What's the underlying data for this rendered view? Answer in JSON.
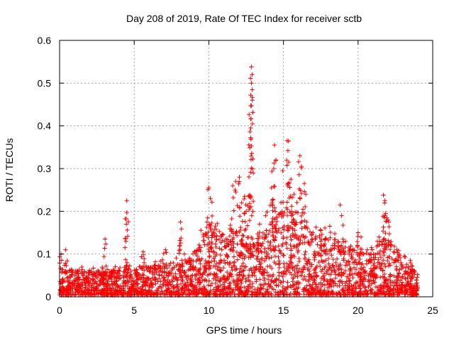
{
  "chart_data": {
    "type": "scatter",
    "title": "Day 208 of 2019, Rate Of TEC Index for receiver sctb",
    "xlabel": "GPS time / hours",
    "ylabel": "ROTI / TECUs",
    "xlim": [
      0,
      25
    ],
    "ylim": [
      0,
      0.6
    ],
    "xticks": [
      0,
      5,
      10,
      15,
      20,
      25
    ],
    "yticks": [
      0,
      0.1,
      0.2,
      0.3,
      0.4,
      0.5,
      0.6
    ],
    "xtick_labels": [
      "0",
      "5",
      "10",
      "15",
      "20",
      "25"
    ],
    "ytick_labels": [
      "0",
      "0.1",
      "0.2",
      "0.3",
      "0.4",
      "0.5",
      "0.6"
    ],
    "grid": true,
    "marker": "+",
    "color": "#ff0000",
    "series": [
      {
        "name": "ROTI",
        "x_range": [
          0,
          24
        ],
        "baseline_profile": {
          "hours": [
            0,
            2,
            4,
            6,
            8,
            9,
            10,
            11,
            12,
            13,
            14,
            15,
            16,
            17,
            18,
            19,
            20,
            21,
            22,
            23,
            24
          ],
          "typical_max": [
            0.06,
            0.06,
            0.06,
            0.07,
            0.08,
            0.09,
            0.18,
            0.14,
            0.16,
            0.12,
            0.18,
            0.2,
            0.2,
            0.14,
            0.14,
            0.12,
            0.1,
            0.11,
            0.14,
            0.08,
            0.05
          ]
        },
        "peaks": [
          {
            "x": 0.1,
            "y": 0.1
          },
          {
            "x": 0.4,
            "y": 0.11
          },
          {
            "x": 3.05,
            "y": 0.135
          },
          {
            "x": 4.5,
            "y": 0.225
          },
          {
            "x": 4.5,
            "y": 0.197
          },
          {
            "x": 4.45,
            "y": 0.13
          },
          {
            "x": 5.6,
            "y": 0.105
          },
          {
            "x": 7.1,
            "y": 0.11
          },
          {
            "x": 8.05,
            "y": 0.12
          },
          {
            "x": 8.1,
            "y": 0.175
          },
          {
            "x": 10.0,
            "y": 0.255
          },
          {
            "x": 10.1,
            "y": 0.23
          },
          {
            "x": 10.3,
            "y": 0.15
          },
          {
            "x": 11.6,
            "y": 0.26
          },
          {
            "x": 11.8,
            "y": 0.27
          },
          {
            "x": 12.05,
            "y": 0.28
          },
          {
            "x": 12.2,
            "y": 0.22
          },
          {
            "x": 12.4,
            "y": 0.235
          },
          {
            "x": 12.5,
            "y": 0.2
          },
          {
            "x": 12.85,
            "y": 0.538
          },
          {
            "x": 12.9,
            "y": 0.52
          },
          {
            "x": 12.85,
            "y": 0.5
          },
          {
            "x": 12.8,
            "y": 0.472
          },
          {
            "x": 12.85,
            "y": 0.447
          },
          {
            "x": 12.8,
            "y": 0.372
          },
          {
            "x": 12.85,
            "y": 0.353
          },
          {
            "x": 12.75,
            "y": 0.235
          },
          {
            "x": 12.95,
            "y": 0.2
          },
          {
            "x": 13.4,
            "y": 0.17
          },
          {
            "x": 13.8,
            "y": 0.19
          },
          {
            "x": 14.2,
            "y": 0.255
          },
          {
            "x": 14.3,
            "y": 0.228
          },
          {
            "x": 14.4,
            "y": 0.355
          },
          {
            "x": 14.5,
            "y": 0.32
          },
          {
            "x": 14.35,
            "y": 0.3
          },
          {
            "x": 14.95,
            "y": 0.295
          },
          {
            "x": 15.25,
            "y": 0.365
          },
          {
            "x": 15.3,
            "y": 0.342
          },
          {
            "x": 15.35,
            "y": 0.315
          },
          {
            "x": 15.5,
            "y": 0.275
          },
          {
            "x": 15.7,
            "y": 0.24
          },
          {
            "x": 16.1,
            "y": 0.33
          },
          {
            "x": 16.2,
            "y": 0.305
          },
          {
            "x": 16.4,
            "y": 0.265
          },
          {
            "x": 16.5,
            "y": 0.24
          },
          {
            "x": 17.1,
            "y": 0.105
          },
          {
            "x": 17.5,
            "y": 0.155
          },
          {
            "x": 17.8,
            "y": 0.135
          },
          {
            "x": 18.1,
            "y": 0.165
          },
          {
            "x": 18.3,
            "y": 0.12
          },
          {
            "x": 18.8,
            "y": 0.215
          },
          {
            "x": 18.9,
            "y": 0.19
          },
          {
            "x": 19.4,
            "y": 0.1
          },
          {
            "x": 20.0,
            "y": 0.15
          },
          {
            "x": 20.2,
            "y": 0.14
          },
          {
            "x": 20.9,
            "y": 0.115
          },
          {
            "x": 21.4,
            "y": 0.14
          },
          {
            "x": 21.7,
            "y": 0.238
          },
          {
            "x": 21.8,
            "y": 0.225
          },
          {
            "x": 21.85,
            "y": 0.195
          },
          {
            "x": 22.0,
            "y": 0.18
          },
          {
            "x": 22.6,
            "y": 0.11
          },
          {
            "x": 23.1,
            "y": 0.095
          },
          {
            "x": 23.5,
            "y": 0.085
          }
        ]
      }
    ]
  }
}
